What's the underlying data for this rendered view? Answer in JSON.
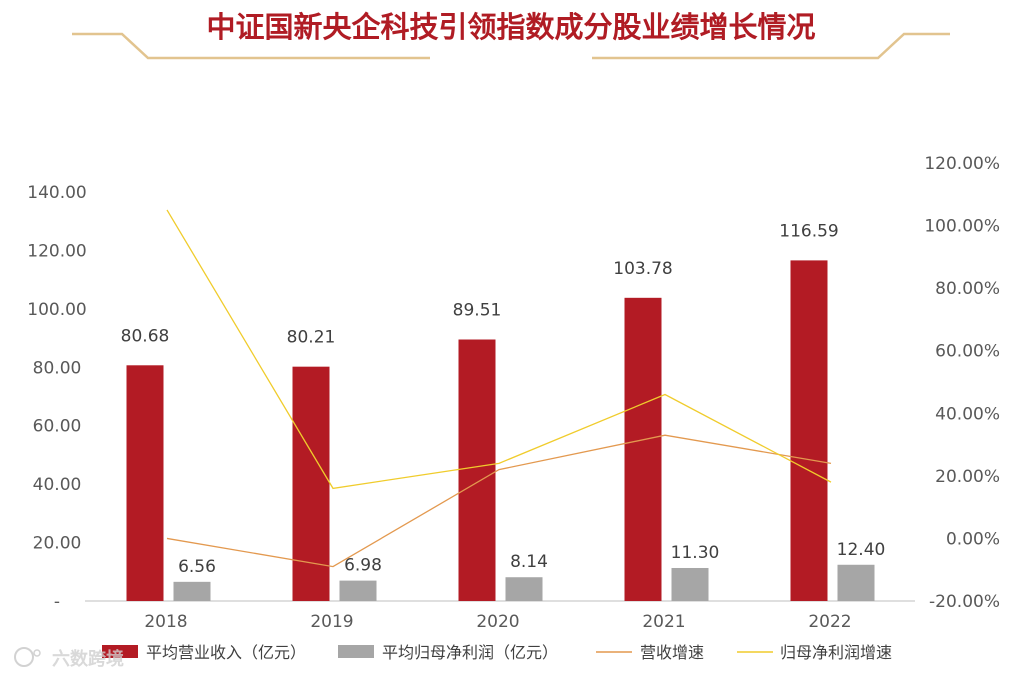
{
  "title": "中证国新央企科技引领指数成分股业绩增长情况",
  "watermark": "六数跨境",
  "colors": {
    "title": "#b01c24",
    "frame": "#e2c48f",
    "revenue_bar": "#b31b24",
    "profit_bar": "#a6a6a6",
    "revenue_growth_line": "#e3994f",
    "profit_growth_line": "#f0cc2c",
    "axis_text": "#595959",
    "axis_line": "#bfbfbf"
  },
  "chart_data": {
    "type": "bar",
    "categories": [
      "2018",
      "2019",
      "2020",
      "2021",
      "2022"
    ],
    "series": [
      {
        "name": "平均营业收入（亿元）",
        "kind": "bar",
        "axis": "left",
        "values": [
          80.68,
          80.21,
          89.51,
          103.78,
          116.59
        ],
        "labels": [
          "80.68",
          "80.21",
          "89.51",
          "103.78",
          "116.59"
        ]
      },
      {
        "name": "平均归母净利润（亿元）",
        "kind": "bar",
        "axis": "left",
        "values": [
          6.56,
          6.98,
          8.14,
          11.3,
          12.4
        ],
        "labels": [
          "6.56",
          "6.98",
          "8.14",
          "11.30",
          "12.40"
        ]
      },
      {
        "name": "营收增速",
        "kind": "line",
        "axis": "right",
        "values": [
          0,
          -9,
          22,
          33,
          24
        ]
      },
      {
        "name": "归母净利润增速",
        "kind": "line",
        "axis": "right",
        "values": [
          105,
          16,
          24,
          46,
          18
        ]
      }
    ],
    "y_left": {
      "ylim": [
        0,
        140
      ],
      "ticks": [
        0,
        20,
        40,
        60,
        80,
        100,
        120,
        140
      ],
      "tick_labels": [
        "-",
        "20.00",
        "40.00",
        "60.00",
        "80.00",
        "100.00",
        "120.00",
        "140.00"
      ]
    },
    "y_right": {
      "ylim": [
        -20,
        120
      ],
      "ticks": [
        -20,
        0,
        20,
        40,
        60,
        80,
        100,
        120
      ],
      "tick_labels": [
        "-20.00%",
        "0.00%",
        "20.00%",
        "40.00%",
        "60.00%",
        "80.00%",
        "100.00%",
        "120.00%"
      ]
    },
    "xlabel": "",
    "ylabel": "",
    "legend_position": "bottom"
  }
}
